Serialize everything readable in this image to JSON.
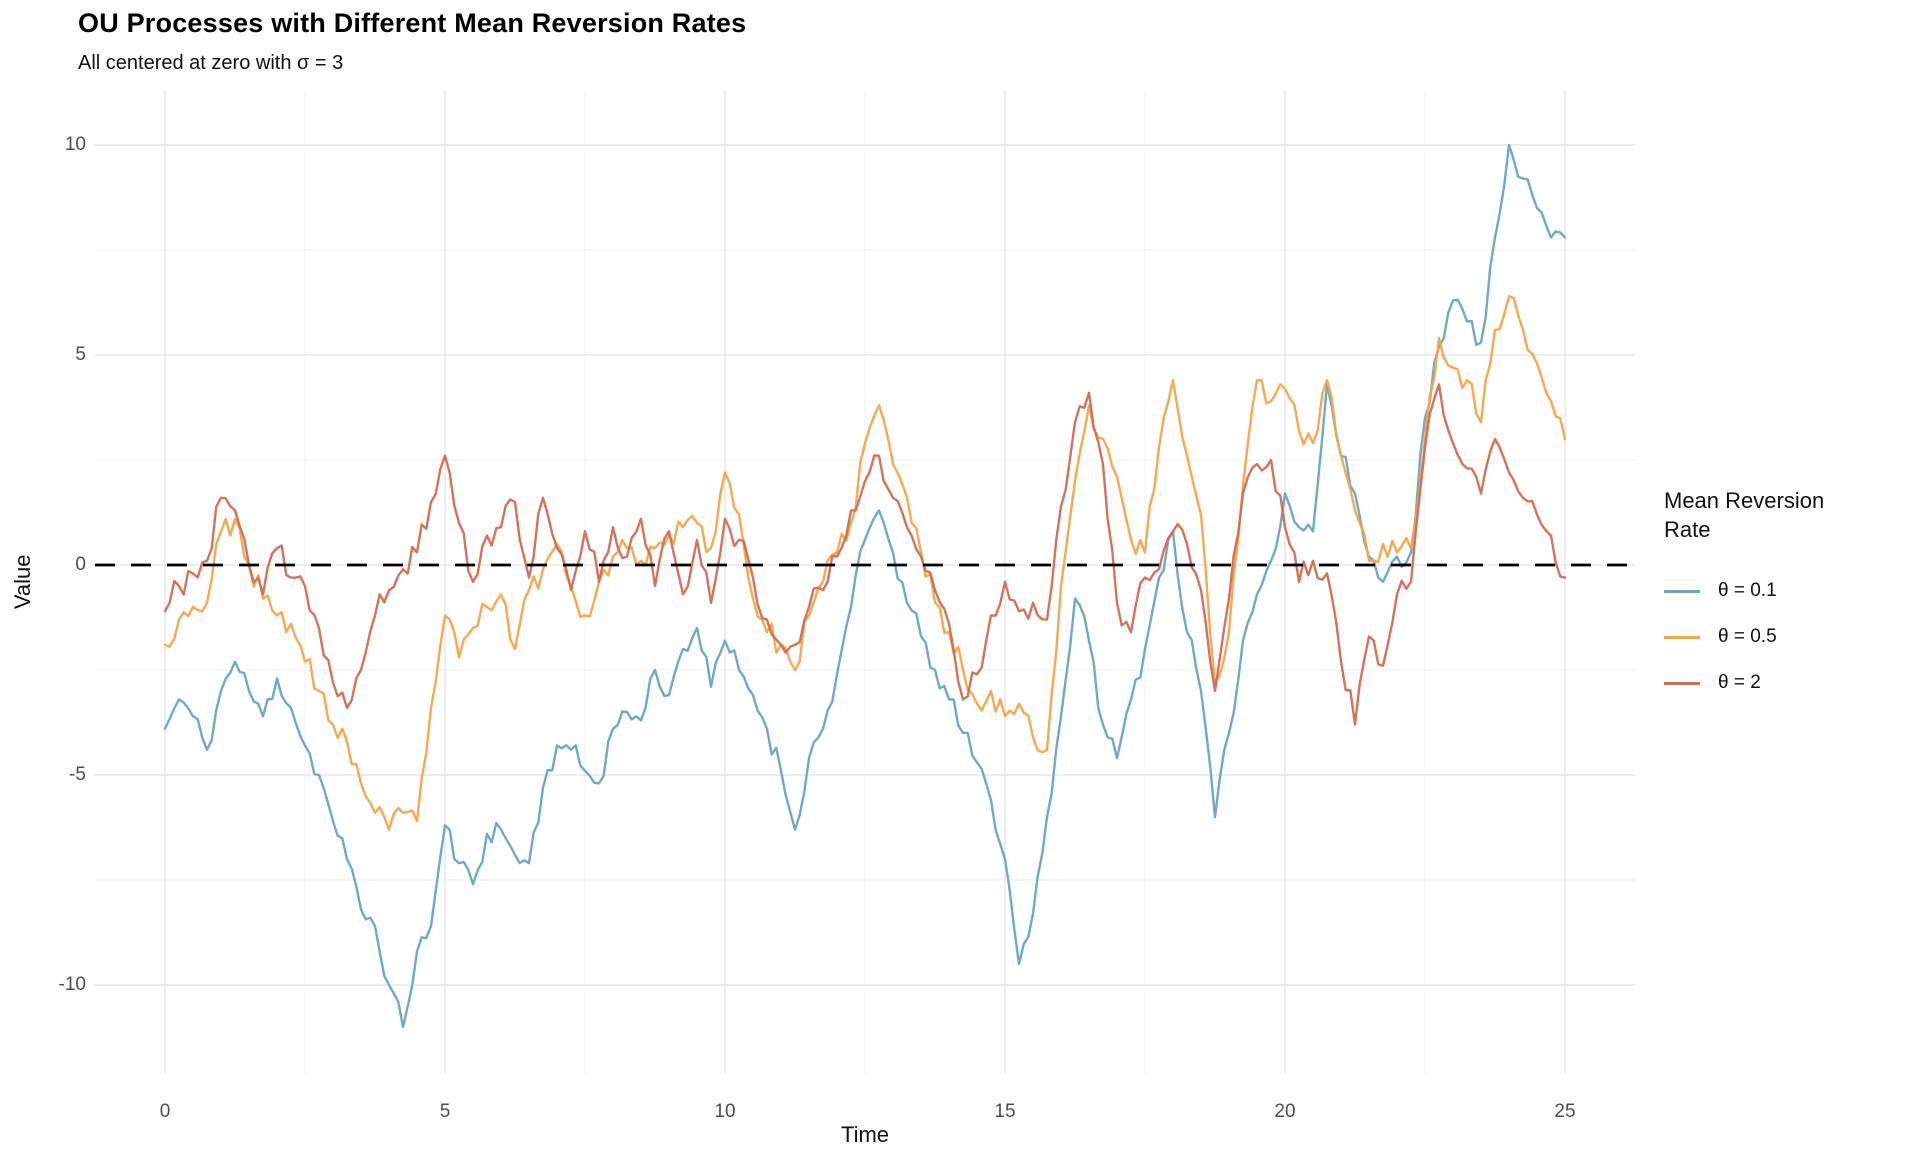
{
  "header": {
    "title": "OU Processes with Different Mean Reversion Rates",
    "subtitle": "All centered at zero with σ = 3"
  },
  "chart_data": {
    "type": "line",
    "title": "OU Processes with Different Mean Reversion Rates",
    "subtitle": "All centered at zero with σ = 3",
    "xlabel": "Time",
    "ylabel": "Value",
    "xlim": [
      -1.25,
      26.25
    ],
    "ylim": [
      -12.1,
      11.3
    ],
    "x_ticks": [
      0,
      5,
      10,
      15,
      20,
      25
    ],
    "x_minor_ticks": [
      2.5,
      7.5,
      12.5,
      17.5,
      22.5
    ],
    "y_ticks": [
      -10,
      -5,
      0,
      5,
      10
    ],
    "y_minor_ticks": [
      -7.5,
      -2.5,
      2.5,
      7.5
    ],
    "grid": "on",
    "background": "#ffffff",
    "grid_major_color": "#e2e2e2",
    "grid_minor_color": "#efefef",
    "tick_label_color": "#4d4d4d",
    "axis_title_color": "#111111",
    "hline": {
      "y": 0,
      "style": "dashed",
      "color": "#000000",
      "width": 2.8,
      "dash": [
        20,
        16
      ]
    },
    "legend": {
      "position": "right",
      "title_lines": [
        "Mean Reversion",
        "Rate"
      ],
      "items": [
        {
          "label": "θ = 0.1",
          "color": "#6ca3c1"
        },
        {
          "label": "θ = 0.5",
          "color": "#f4a44a"
        },
        {
          "label": "θ = 2",
          "color": "#d06b55"
        }
      ]
    },
    "t_start": 0,
    "t_step": 0.25,
    "series": [
      {
        "name": "θ = 0.1",
        "theta": 0.1,
        "color": "#6ca3c1",
        "jitter": 0.28,
        "seed": 11,
        "values": [
          -3.9,
          -3.2,
          -3.6,
          -4.4,
          -3.0,
          -2.3,
          -3.0,
          -3.6,
          -2.7,
          -3.4,
          -4.3,
          -5.0,
          -6.1,
          -7.0,
          -8.2,
          -8.6,
          -10.0,
          -11.0,
          -9.2,
          -8.6,
          -6.2,
          -7.1,
          -7.6,
          -6.4,
          -6.3,
          -6.9,
          -7.1,
          -5.3,
          -4.3,
          -4.4,
          -4.9,
          -5.2,
          -3.9,
          -3.5,
          -3.7,
          -2.5,
          -3.1,
          -2.0,
          -1.5,
          -2.9,
          -1.8,
          -2.5,
          -3.1,
          -3.9,
          -4.9,
          -6.3,
          -4.6,
          -3.9,
          -2.6,
          -1.0,
          0.6,
          1.3,
          0.3,
          -0.9,
          -1.7,
          -2.5,
          -3.2,
          -4.0,
          -4.7,
          -5.6,
          -7.0,
          -9.5,
          -8.3,
          -6.0,
          -3.6,
          -0.8,
          -1.8,
          -3.8,
          -4.6,
          -3.2,
          -2.0,
          -0.3,
          0.8,
          -1.6,
          -3.0,
          -6.0,
          -4.0,
          -1.8,
          -0.7,
          0.1,
          1.7,
          0.9,
          0.8,
          4.3,
          2.6,
          1.7,
          0.2,
          -0.4,
          0.2,
          0.3,
          3.5,
          5.2,
          6.3,
          5.8,
          5.3,
          7.8,
          10.0,
          9.2,
          8.5,
          7.8,
          7.8
        ]
      },
      {
        "name": "θ = 0.5",
        "theta": 0.5,
        "color": "#f4a44a",
        "jitter": 0.3,
        "seed": 23,
        "values": [
          -1.9,
          -1.3,
          -1.0,
          -0.9,
          0.8,
          1.1,
          0.0,
          -0.8,
          -1.2,
          -1.4,
          -2.3,
          -3.0,
          -3.8,
          -4.2,
          -5.2,
          -5.9,
          -6.3,
          -5.9,
          -6.1,
          -3.4,
          -1.2,
          -2.2,
          -1.5,
          -1.0,
          -0.7,
          -2.0,
          -0.6,
          -0.1,
          0.5,
          -0.5,
          -1.2,
          -0.4,
          0.2,
          0.4,
          0.1,
          0.4,
          0.7,
          0.9,
          1.0,
          0.4,
          2.2,
          1.2,
          -0.8,
          -1.6,
          -1.9,
          -2.5,
          -1.2,
          -0.4,
          0.3,
          1.0,
          2.9,
          3.8,
          2.4,
          1.6,
          0.3,
          -0.9,
          -1.6,
          -2.5,
          -3.3,
          -3.0,
          -3.6,
          -3.3,
          -4.1,
          -4.4,
          -0.5,
          2.0,
          3.8,
          3.0,
          2.1,
          0.6,
          0.3,
          2.8,
          4.4,
          2.6,
          1.2,
          -2.8,
          -1.6,
          1.9,
          4.4,
          3.9,
          4.2,
          3.2,
          2.9,
          4.4,
          2.6,
          1.3,
          0.1,
          0.5,
          0.3,
          0.4,
          3.0,
          5.4,
          4.7,
          4.4,
          3.4,
          5.6,
          6.4,
          5.6,
          4.8,
          3.9,
          3.0
        ]
      },
      {
        "name": "θ = 2",
        "theta": 2,
        "color": "#d06b55",
        "jitter": 0.32,
        "seed": 37,
        "values": [
          -1.1,
          -0.5,
          -0.2,
          0.1,
          1.6,
          1.3,
          0.0,
          -0.7,
          0.4,
          -0.3,
          -0.5,
          -1.5,
          -2.8,
          -3.4,
          -2.5,
          -1.2,
          -0.6,
          -0.1,
          0.3,
          1.5,
          2.6,
          1.0,
          -0.4,
          0.7,
          0.9,
          1.5,
          -0.3,
          1.6,
          0.4,
          -0.6,
          0.8,
          -0.4,
          0.9,
          0.2,
          1.1,
          -0.5,
          0.8,
          -0.7,
          0.6,
          -0.9,
          1.1,
          0.6,
          -0.3,
          -1.3,
          -1.9,
          -1.9,
          -1.0,
          -0.6,
          0.2,
          1.3,
          2.0,
          2.6,
          1.6,
          0.9,
          0.2,
          -0.6,
          -1.4,
          -3.2,
          -2.6,
          -1.2,
          -0.4,
          -1.1,
          -0.9,
          -1.3,
          1.4,
          3.4,
          4.1,
          2.4,
          -0.9,
          -1.6,
          -0.3,
          -0.1,
          0.8,
          0.5,
          -0.6,
          -3.0,
          -0.8,
          1.7,
          2.4,
          2.5,
          0.9,
          -0.4,
          0.1,
          -0.2,
          -2.3,
          -3.8,
          -1.7,
          -2.4,
          -0.7,
          -0.4,
          2.8,
          4.3,
          2.9,
          2.3,
          1.7,
          3.0,
          2.2,
          1.6,
          1.2,
          0.7,
          -0.3
        ]
      }
    ]
  }
}
